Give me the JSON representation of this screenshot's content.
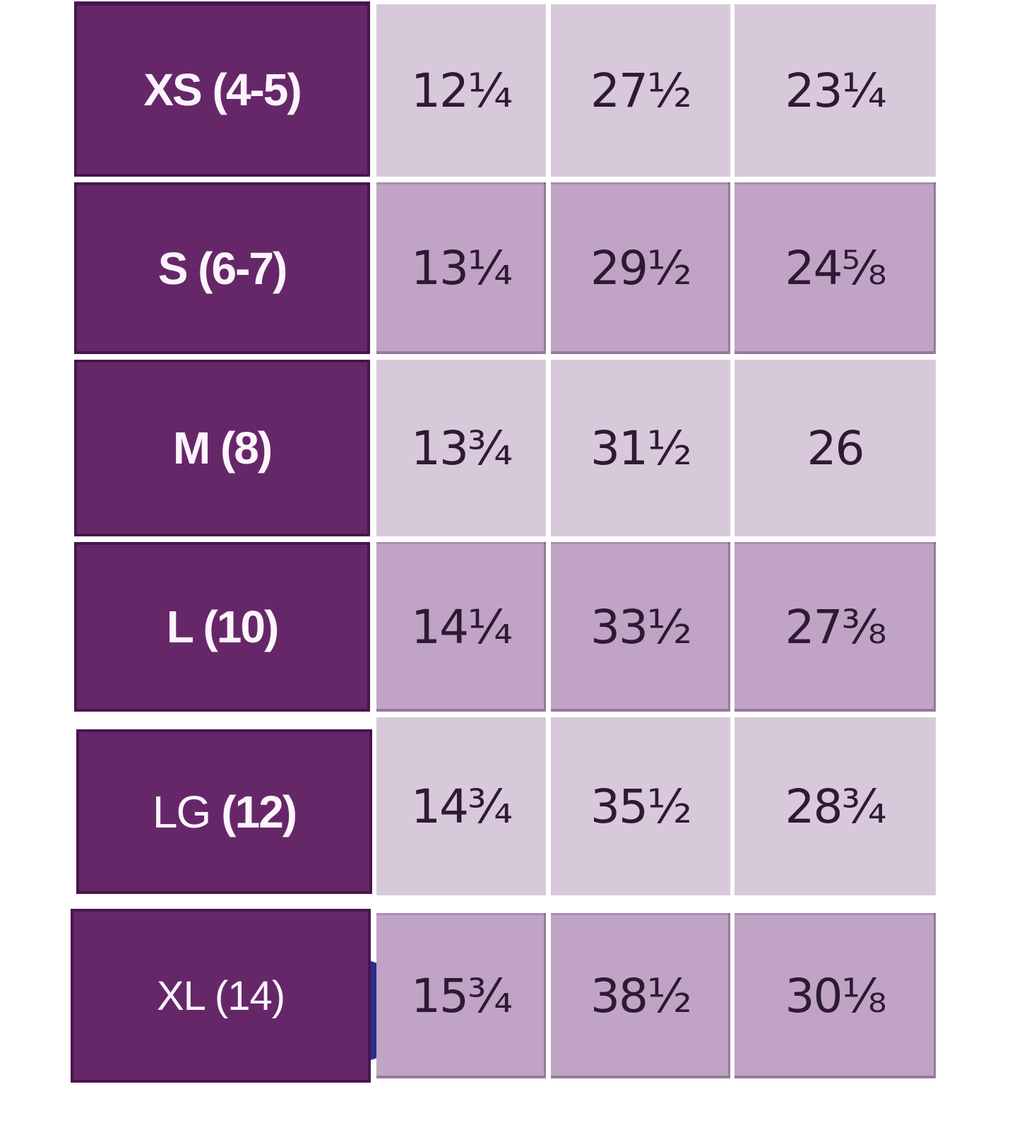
{
  "chart_data": {
    "type": "table",
    "rows": [
      {
        "size": "XS (4-5)",
        "label_regular": "",
        "label_bold": "XS (4-5)",
        "values": [
          "12¼",
          "27½",
          "23¼"
        ]
      },
      {
        "size": "S (6-7)",
        "label_regular": "",
        "label_bold": "S (6-7)",
        "values": [
          "13¼",
          "29½",
          "24⅝"
        ]
      },
      {
        "size": "M (8)",
        "label_regular": "",
        "label_bold": "M (8)",
        "values": [
          "13¾",
          "31½",
          "26"
        ]
      },
      {
        "size": "L (10)",
        "label_regular": "",
        "label_bold": "L (10)",
        "values": [
          "14¼",
          "33½",
          "27⅜"
        ]
      },
      {
        "size": "LG (12)",
        "label_regular": "LG",
        "label_bold": "(12)",
        "values": [
          "14¾",
          "35½",
          "28¾"
        ]
      },
      {
        "size": "XL (14)",
        "label_regular": "XL (14)",
        "label_bold": "",
        "values": [
          "15¾",
          "38½",
          "30⅛"
        ]
      }
    ],
    "layout": {
      "header_column": "sizes",
      "data_columns": 3,
      "row_shading": "alternating light/dark lavender"
    }
  },
  "colors": {
    "header_purple": "#662769",
    "header_border": "#300834",
    "row_light": "#d8c9da",
    "row_dark": "#c1a4c5",
    "cell_text": "#2e1a33",
    "header_text": "#fdf4fd",
    "capsule_blue": "#2b2e8e",
    "background": "#ffffff"
  }
}
